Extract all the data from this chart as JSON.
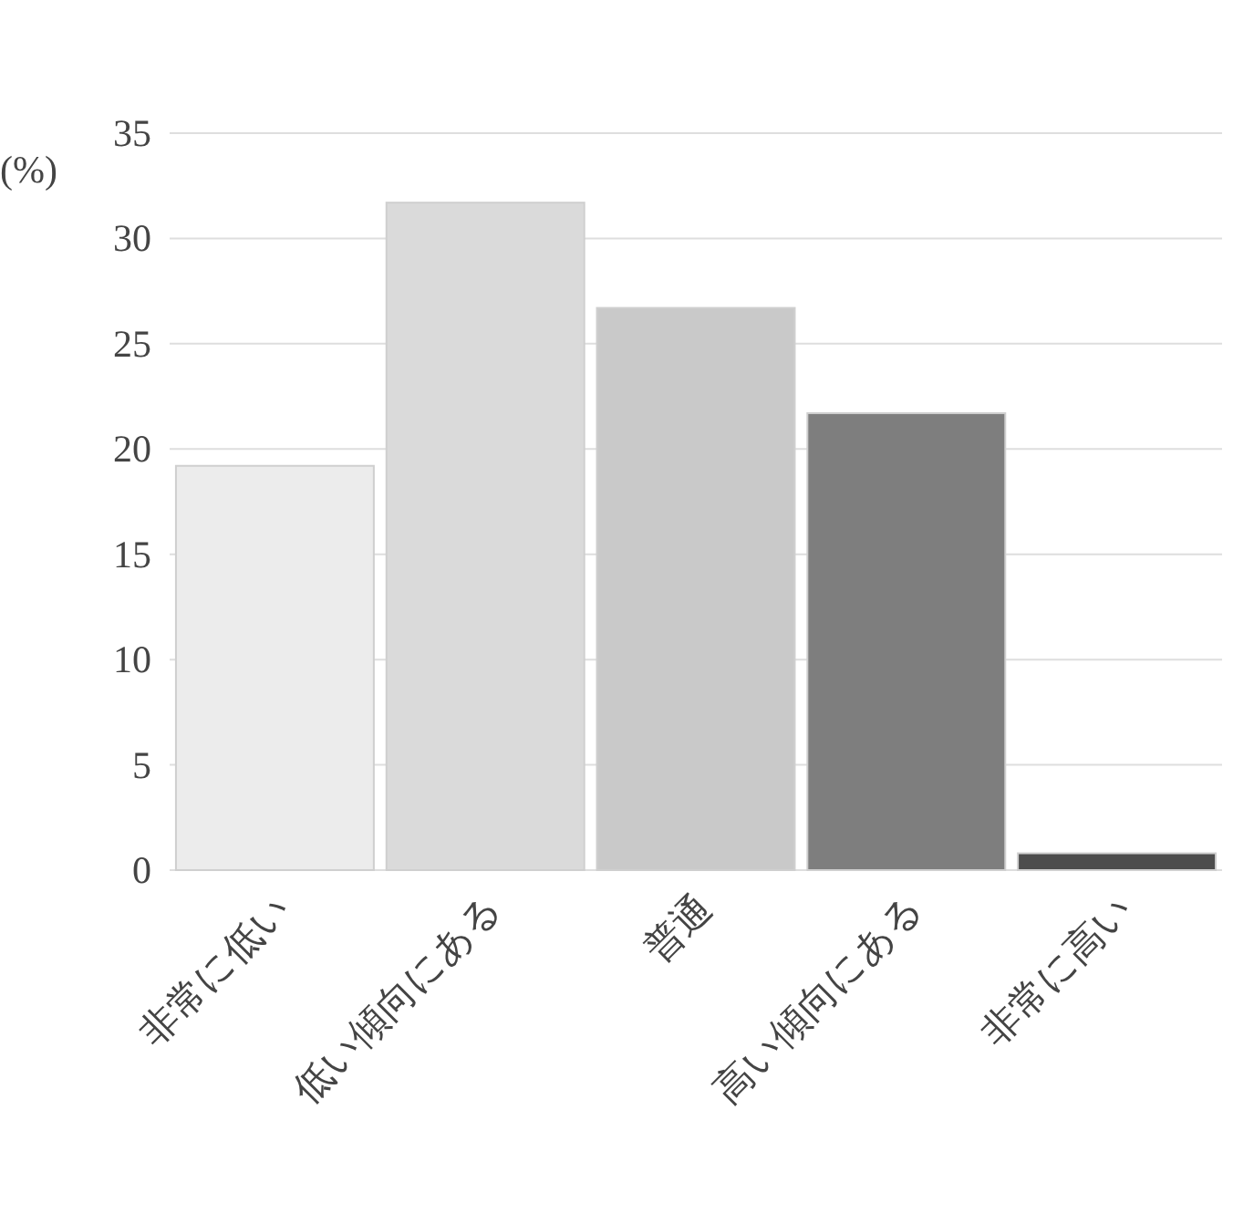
{
  "chart_data": {
    "type": "bar",
    "ylabel": "(%)",
    "categories": [
      "非常に低い",
      "低い傾向にある",
      "普通",
      "高い傾向にある",
      "非常に高い"
    ],
    "values": [
      19.2,
      31.7,
      26.7,
      21.7,
      0.8
    ],
    "colors": [
      "#ececec",
      "#dadada",
      "#c9c9c9",
      "#7e7e7e",
      "#4d4d4d"
    ],
    "ylim": [
      0,
      35
    ],
    "yticks": [
      0,
      5,
      10,
      15,
      20,
      25,
      30,
      35
    ],
    "grid": "y"
  }
}
